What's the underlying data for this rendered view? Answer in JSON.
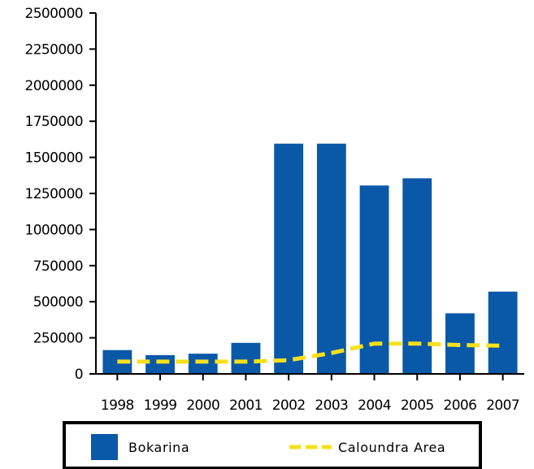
{
  "chart_data": {
    "type": "bar",
    "title": "",
    "xlabel": "",
    "ylabel": "",
    "categories": [
      "1998",
      "1999",
      "2000",
      "2001",
      "2002",
      "2003",
      "2004",
      "2005",
      "2006",
      "2007"
    ],
    "ylim": [
      0,
      2500000
    ],
    "yticks": [
      0,
      250000,
      500000,
      750000,
      1000000,
      1250000,
      1500000,
      1750000,
      2000000,
      2250000,
      2500000
    ],
    "ytick_labels": [
      "0",
      "250000",
      "500000",
      "750000",
      "1000000",
      "1250000",
      "1500000",
      "1750000",
      "2000000",
      "2250000",
      "2500000"
    ],
    "grid": false,
    "legend_position": "bottom",
    "series": [
      {
        "name": "Bokarina",
        "kind": "bar",
        "color": "#0a58a8",
        "values": [
          165000,
          130000,
          140000,
          215000,
          1595000,
          1595000,
          1305000,
          1355000,
          420000,
          570000
        ]
      },
      {
        "name": "Caloundra Area",
        "kind": "line",
        "style": "dashed",
        "color": "#f7e01c",
        "values": [
          85000,
          85000,
          85000,
          85000,
          95000,
          145000,
          210000,
          210000,
          200000,
          195000
        ]
      }
    ]
  }
}
